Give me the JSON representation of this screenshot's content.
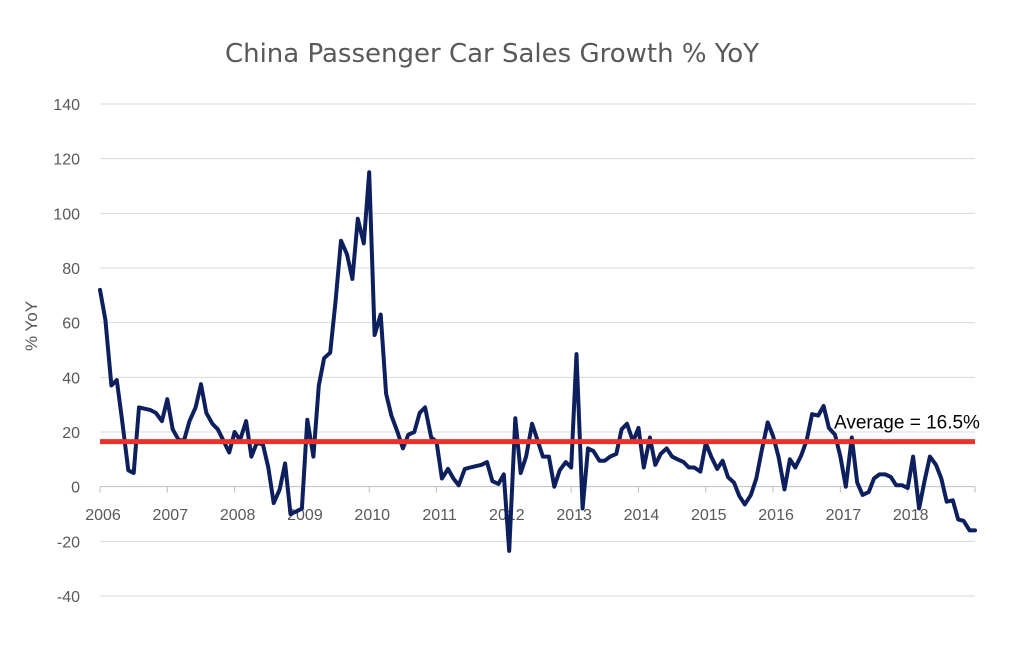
{
  "chart_data": {
    "type": "line",
    "title": "China Passenger Car Sales Growth % YoY",
    "xlabel": "",
    "ylabel": "% YoY",
    "ylim": [
      -40,
      140
    ],
    "yticks": [
      -40,
      -20,
      0,
      20,
      40,
      60,
      80,
      100,
      120,
      140
    ],
    "xlim": [
      2006,
      2019
    ],
    "year_labels": [
      "2006",
      "2007",
      "2008",
      "2009",
      "2010",
      "2011",
      "2012",
      "2013",
      "2014",
      "2015",
      "2016",
      "2017",
      "2018"
    ],
    "grid": true,
    "legend": "none",
    "series": [
      {
        "color": "#0d1f5c",
        "points": [
          [
            2006.0,
            72
          ],
          [
            2006.08,
            61
          ],
          [
            2006.17,
            37
          ],
          [
            2006.25,
            39
          ],
          [
            2006.33,
            24
          ],
          [
            2006.42,
            6
          ],
          [
            2006.5,
            5
          ],
          [
            2006.58,
            29
          ],
          [
            2006.67,
            28.5
          ],
          [
            2006.75,
            28
          ],
          [
            2006.83,
            27
          ],
          [
            2006.92,
            24
          ],
          [
            2007.0,
            32
          ],
          [
            2007.08,
            21
          ],
          [
            2007.17,
            17
          ],
          [
            2007.25,
            17
          ],
          [
            2007.33,
            24
          ],
          [
            2007.42,
            29
          ],
          [
            2007.5,
            37.5
          ],
          [
            2007.58,
            27
          ],
          [
            2007.67,
            23
          ],
          [
            2007.75,
            21
          ],
          [
            2007.83,
            17
          ],
          [
            2007.92,
            12.5
          ],
          [
            2008.0,
            20
          ],
          [
            2008.08,
            17
          ],
          [
            2008.17,
            24
          ],
          [
            2008.25,
            11
          ],
          [
            2008.33,
            16
          ],
          [
            2008.42,
            15.5
          ],
          [
            2008.5,
            7
          ],
          [
            2008.58,
            -6
          ],
          [
            2008.67,
            -1
          ],
          [
            2008.75,
            8.5
          ],
          [
            2008.83,
            -10
          ],
          [
            2008.92,
            -9
          ],
          [
            2009.0,
            -8
          ],
          [
            2009.08,
            24.5
          ],
          [
            2009.17,
            11
          ],
          [
            2009.25,
            37
          ],
          [
            2009.33,
            47
          ],
          [
            2009.42,
            49
          ],
          [
            2009.5,
            68
          ],
          [
            2009.58,
            90
          ],
          [
            2009.67,
            85
          ],
          [
            2009.75,
            76
          ],
          [
            2009.83,
            98
          ],
          [
            2009.92,
            89
          ],
          [
            2010.0,
            115
          ],
          [
            2010.08,
            55.5
          ],
          [
            2010.17,
            63
          ],
          [
            2010.25,
            34
          ],
          [
            2010.33,
            26
          ],
          [
            2010.42,
            20
          ],
          [
            2010.5,
            14
          ],
          [
            2010.58,
            19
          ],
          [
            2010.67,
            20
          ],
          [
            2010.75,
            27
          ],
          [
            2010.83,
            29
          ],
          [
            2010.92,
            18
          ],
          [
            2011.0,
            16.5
          ],
          [
            2011.08,
            3
          ],
          [
            2011.17,
            6.5
          ],
          [
            2011.25,
            3
          ],
          [
            2011.33,
            0.5
          ],
          [
            2011.42,
            6.5
          ],
          [
            2011.5,
            7
          ],
          [
            2011.58,
            7.5
          ],
          [
            2011.67,
            8
          ],
          [
            2011.75,
            9
          ],
          [
            2011.83,
            2
          ],
          [
            2011.92,
            1
          ],
          [
            2012.0,
            4.5
          ],
          [
            2012.08,
            -23.5
          ],
          [
            2012.17,
            25
          ],
          [
            2012.25,
            5
          ],
          [
            2012.33,
            11
          ],
          [
            2012.42,
            23
          ],
          [
            2012.5,
            17
          ],
          [
            2012.58,
            11
          ],
          [
            2012.67,
            11
          ],
          [
            2012.75,
            0
          ],
          [
            2012.83,
            6
          ],
          [
            2012.92,
            9
          ],
          [
            2013.0,
            7
          ],
          [
            2013.08,
            48.5
          ],
          [
            2013.17,
            -8
          ],
          [
            2013.25,
            14
          ],
          [
            2013.33,
            13
          ],
          [
            2013.42,
            9.5
          ],
          [
            2013.5,
            9.5
          ],
          [
            2013.58,
            11
          ],
          [
            2013.67,
            12
          ],
          [
            2013.75,
            21
          ],
          [
            2013.83,
            23
          ],
          [
            2013.92,
            16.5
          ],
          [
            2014.0,
            21.5
          ],
          [
            2014.08,
            7
          ],
          [
            2014.17,
            18
          ],
          [
            2014.25,
            8
          ],
          [
            2014.33,
            12
          ],
          [
            2014.42,
            14
          ],
          [
            2014.5,
            11
          ],
          [
            2014.58,
            10
          ],
          [
            2014.67,
            9
          ],
          [
            2014.75,
            7
          ],
          [
            2014.83,
            7
          ],
          [
            2014.92,
            5.5
          ],
          [
            2015.0,
            16
          ],
          [
            2015.08,
            11
          ],
          [
            2015.17,
            6.5
          ],
          [
            2015.25,
            9.5
          ],
          [
            2015.33,
            3.5
          ],
          [
            2015.42,
            1.5
          ],
          [
            2015.5,
            -3.5
          ],
          [
            2015.58,
            -6.5
          ],
          [
            2015.67,
            -3
          ],
          [
            2015.75,
            3
          ],
          [
            2015.83,
            13
          ],
          [
            2015.92,
            23.5
          ],
          [
            2016.0,
            18.5
          ],
          [
            2016.08,
            11
          ],
          [
            2016.17,
            -1
          ],
          [
            2016.25,
            10
          ],
          [
            2016.33,
            7
          ],
          [
            2016.42,
            11.5
          ],
          [
            2016.5,
            17
          ],
          [
            2016.58,
            26.5
          ],
          [
            2016.67,
            26
          ],
          [
            2016.75,
            29.5
          ],
          [
            2016.83,
            21.5
          ],
          [
            2016.92,
            19
          ],
          [
            2017.0,
            11
          ],
          [
            2017.08,
            0
          ],
          [
            2017.17,
            18
          ],
          [
            2017.25,
            1.5
          ],
          [
            2017.33,
            -3
          ],
          [
            2017.42,
            -2
          ],
          [
            2017.5,
            3
          ],
          [
            2017.58,
            4.5
          ],
          [
            2017.67,
            4.5
          ],
          [
            2017.75,
            3.5
          ],
          [
            2017.83,
            0.5
          ],
          [
            2017.92,
            0.5
          ],
          [
            2018.0,
            -0.5
          ],
          [
            2018.08,
            11
          ],
          [
            2018.17,
            -8
          ],
          [
            2018.25,
            2
          ],
          [
            2018.33,
            11
          ],
          [
            2018.42,
            8
          ],
          [
            2018.5,
            3
          ],
          [
            2018.58,
            -5.5
          ],
          [
            2018.67,
            -5
          ],
          [
            2018.75,
            -12
          ],
          [
            2018.83,
            -12.5
          ],
          [
            2018.92,
            -16
          ],
          [
            2019.0,
            -16
          ]
        ]
      }
    ],
    "reference_line": {
      "value": 16.5,
      "color": "#e8322a",
      "label": "Average = 16.5%"
    }
  }
}
